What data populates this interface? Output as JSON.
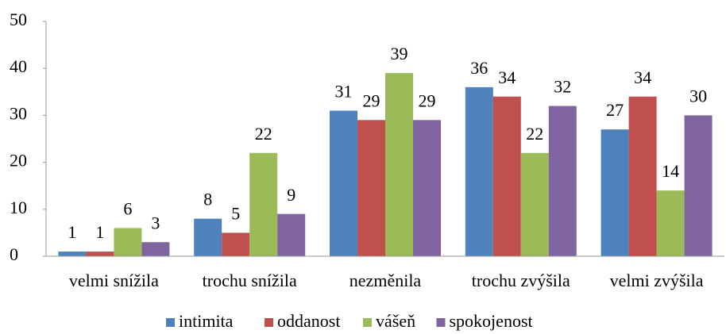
{
  "chart_data": {
    "type": "bar",
    "categories": [
      "velmi snížila",
      "trochu snížila",
      "nezměnila",
      "trochu zvýšila",
      "velmi zvýšila"
    ],
    "series": [
      {
        "name": "intimita",
        "color": "#4f81bd",
        "values": [
          1,
          8,
          31,
          36,
          27
        ]
      },
      {
        "name": "oddanost",
        "color": "#c0504d",
        "values": [
          1,
          5,
          29,
          34,
          34
        ]
      },
      {
        "name": "vášeň",
        "color": "#9bbb59",
        "values": [
          6,
          22,
          39,
          22,
          14
        ]
      },
      {
        "name": "spokojenost",
        "color": "#8064a2",
        "values": [
          3,
          9,
          29,
          32,
          30
        ]
      }
    ],
    "ylim": [
      0,
      50
    ],
    "yticks": [
      0,
      10,
      20,
      30,
      40,
      50
    ],
    "grid": false,
    "legend": "bottom"
  }
}
